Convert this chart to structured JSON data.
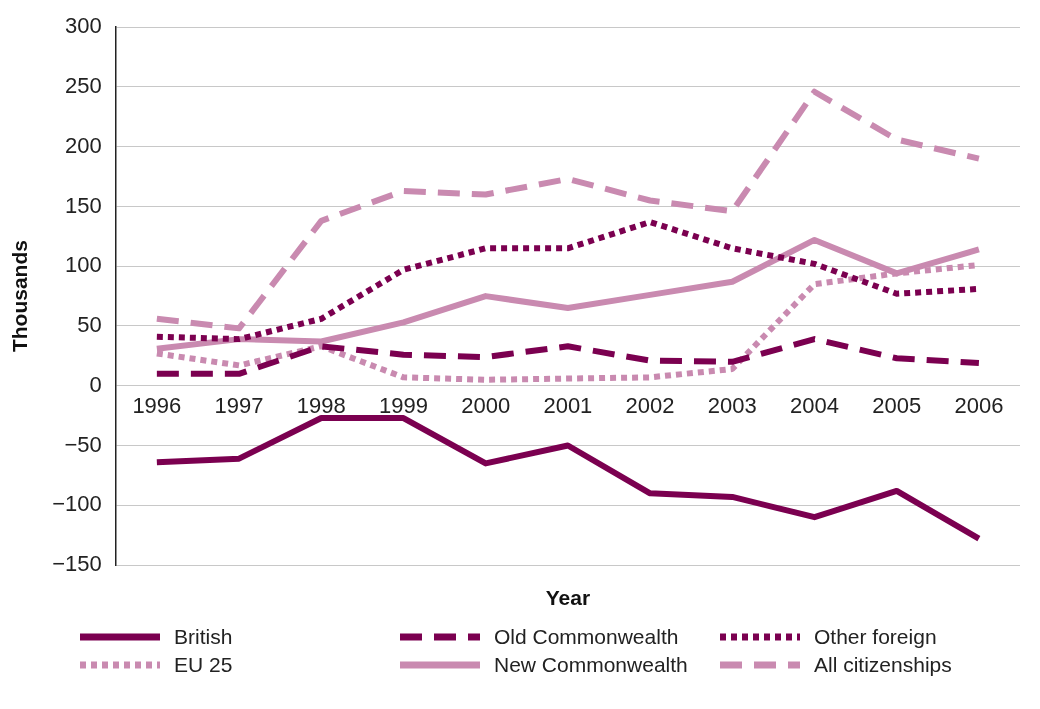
{
  "chart_data": {
    "type": "line",
    "xlabel": "Year",
    "ylabel": "Thousands",
    "categories": [
      "1996",
      "1997",
      "1998",
      "1999",
      "2000",
      "2001",
      "2002",
      "2003",
      "2004",
      "2005",
      "2006"
    ],
    "series": [
      {
        "name": "British",
        "color": "#7b0050",
        "line_style": "solid",
        "values": [
          -64,
          -61,
          -27,
          -27,
          -65,
          -50,
          -90,
          -93,
          -110,
          -88,
          -128
        ]
      },
      {
        "name": "Old Commonwealth",
        "color": "#7b0050",
        "line_style": "dashed",
        "values": [
          10,
          10,
          33,
          26,
          24,
          33,
          21,
          20,
          39,
          23,
          19
        ]
      },
      {
        "name": "Other foreign",
        "color": "#7b0050",
        "line_style": "dotted",
        "values": [
          41,
          39,
          56,
          97,
          115,
          115,
          137,
          115,
          102,
          77,
          81
        ]
      },
      {
        "name": "EU 25",
        "color": "#c98ab0",
        "line_style": "dotted",
        "values": [
          27,
          17,
          33,
          7,
          5,
          6,
          7,
          14,
          85,
          94,
          101
        ]
      },
      {
        "name": "New Commonwealth",
        "color": "#c98ab0",
        "line_style": "solid",
        "values": [
          31,
          39,
          37,
          53,
          75,
          65,
          76,
          87,
          122,
          94,
          114
        ]
      },
      {
        "name": "All citizenships",
        "color": "#c98ab0",
        "line_style": "dashed",
        "values": [
          56,
          48,
          138,
          163,
          160,
          173,
          155,
          146,
          246,
          206,
          190
        ]
      }
    ],
    "ylim": [
      -150,
      300
    ],
    "yticks": [
      -150,
      -100,
      -50,
      0,
      50,
      100,
      150,
      200,
      250,
      300
    ],
    "grid": "y",
    "legend": "bottom",
    "marker": "none"
  }
}
